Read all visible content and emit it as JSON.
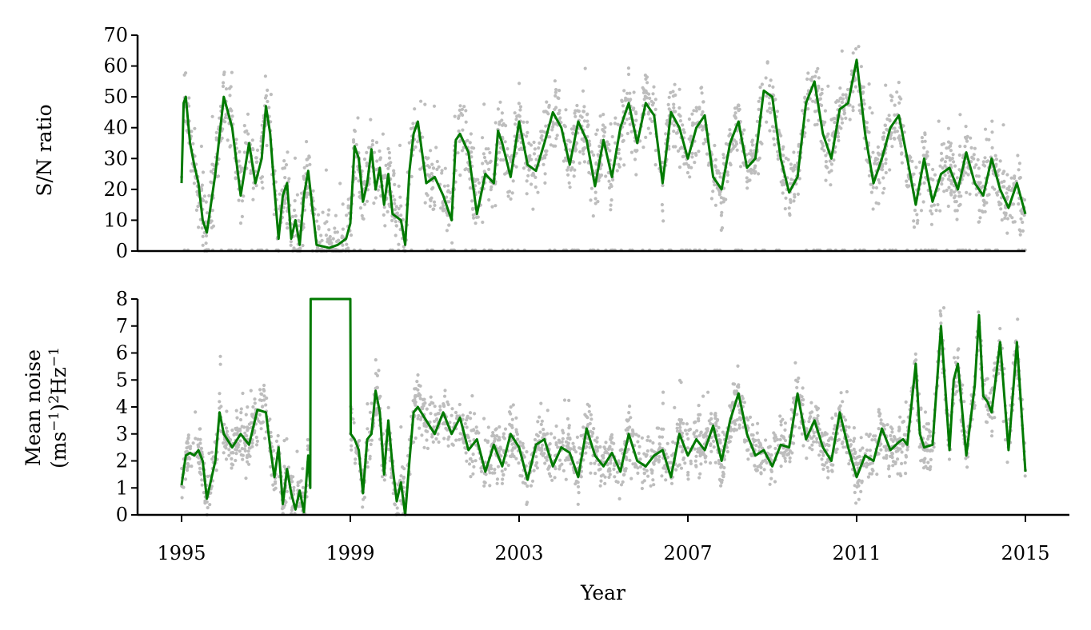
{
  "chart_data": [
    {
      "type": "line",
      "panel": "top",
      "ylabel": "S/N ratio",
      "xlabel": "",
      "xlim": [
        1995,
        2015
      ],
      "ylim": [
        0,
        70
      ],
      "yticks": [
        "0",
        "10",
        "20",
        "30",
        "40",
        "50",
        "60",
        "70"
      ],
      "grid": false,
      "scatter_color": "#bdbdbd",
      "line_color": "#007a00",
      "scatter_note": "dense grey daily values scattered around the smoothed line, many points at 0",
      "smoothed": {
        "x": [
          1995.0,
          1995.05,
          1995.1,
          1995.2,
          1995.3,
          1995.4,
          1995.5,
          1995.6,
          1995.8,
          1996.0,
          1996.2,
          1996.4,
          1996.6,
          1996.75,
          1996.9,
          1997.0,
          1997.1,
          1997.2,
          1997.3,
          1997.4,
          1997.5,
          1997.6,
          1997.7,
          1997.8,
          1997.9,
          1998.0,
          1998.2,
          1998.5,
          1998.7,
          1998.9,
          1999.0,
          1999.1,
          1999.2,
          1999.3,
          1999.4,
          1999.5,
          1999.6,
          1999.7,
          1999.8,
          1999.9,
          2000.0,
          2000.2,
          2000.3,
          2000.4,
          2000.5,
          2000.6,
          2000.8,
          2001.0,
          2001.2,
          2001.4,
          2001.5,
          2001.6,
          2001.8,
          2002.0,
          2002.2,
          2002.4,
          2002.5,
          2002.6,
          2002.8,
          2003.0,
          2003.2,
          2003.4,
          2003.6,
          2003.8,
          2004.0,
          2004.2,
          2004.4,
          2004.6,
          2004.8,
          2005.0,
          2005.2,
          2005.4,
          2005.6,
          2005.8,
          2006.0,
          2006.2,
          2006.4,
          2006.6,
          2006.8,
          2007.0,
          2007.2,
          2007.4,
          2007.6,
          2007.8,
          2008.0,
          2008.2,
          2008.4,
          2008.6,
          2008.8,
          2009.0,
          2009.2,
          2009.4,
          2009.6,
          2009.8,
          2010.0,
          2010.2,
          2010.4,
          2010.6,
          2010.8,
          2011.0,
          2011.2,
          2011.4,
          2011.6,
          2011.8,
          2012.0,
          2012.2,
          2012.4,
          2012.6,
          2012.8,
          2013.0,
          2013.2,
          2013.4,
          2013.6,
          2013.8,
          2014.0,
          2014.2,
          2014.4,
          2014.6,
          2014.8,
          2015.0
        ],
        "y": [
          22,
          48,
          50,
          35,
          28,
          22,
          10,
          6,
          25,
          50,
          40,
          18,
          35,
          22,
          30,
          47,
          38,
          20,
          4,
          18,
          22,
          4,
          10,
          2,
          18,
          26,
          2,
          1,
          2,
          4,
          9,
          34,
          30,
          16,
          22,
          33,
          20,
          27,
          15,
          25,
          12,
          10,
          2,
          26,
          38,
          42,
          22,
          24,
          18,
          10,
          36,
          38,
          32,
          12,
          25,
          22,
          39,
          35,
          24,
          42,
          28,
          26,
          35,
          45,
          40,
          28,
          42,
          36,
          21,
          36,
          24,
          40,
          48,
          35,
          48,
          44,
          22,
          45,
          40,
          30,
          40,
          44,
          24,
          20,
          35,
          42,
          27,
          30,
          52,
          50,
          30,
          19,
          24,
          48,
          55,
          38,
          30,
          46,
          48,
          62,
          38,
          22,
          30,
          40,
          44,
          30,
          15,
          30,
          16,
          25,
          27,
          20,
          32,
          22,
          18,
          30,
          20,
          14,
          22,
          12
        ]
      }
    },
    {
      "type": "line",
      "panel": "bottom",
      "ylabel_line1": "Mean noise",
      "ylabel_line2_parts": [
        "(ms",
        "−1",
        ")",
        "2",
        "Hz",
        "−1"
      ],
      "xlabel": "Year",
      "xlim": [
        1995,
        2015
      ],
      "ylim": [
        0,
        8
      ],
      "yticks": [
        "0",
        "1",
        "2",
        "3",
        "4",
        "5",
        "6",
        "7",
        "8"
      ],
      "xticks": [
        1995,
        1999,
        2003,
        2007,
        2011,
        2015
      ],
      "xtick_labels": [
        "1995",
        "1999",
        "2003",
        "2007",
        "2011",
        "2015"
      ],
      "grid": false,
      "scatter_color": "#bdbdbd",
      "line_color": "#007a00",
      "smoothed": {
        "x": [
          1995.0,
          1995.1,
          1995.2,
          1995.3,
          1995.4,
          1995.5,
          1995.6,
          1995.8,
          1995.9,
          1996.0,
          1996.2,
          1996.4,
          1996.6,
          1996.8,
          1997.0,
          1997.1,
          1997.2,
          1997.3,
          1997.4,
          1997.5,
          1997.6,
          1997.7,
          1997.8,
          1997.9,
          1998.0,
          1998.05,
          1998.06,
          1999.0,
          1999.01,
          1999.1,
          1999.2,
          1999.3,
          1999.4,
          1999.5,
          1999.6,
          1999.7,
          1999.8,
          1999.9,
          2000.0,
          2000.1,
          2000.2,
          2000.3,
          2000.4,
          2000.5,
          2000.6,
          2000.8,
          2001.0,
          2001.2,
          2001.4,
          2001.6,
          2001.8,
          2002.0,
          2002.2,
          2002.4,
          2002.6,
          2002.8,
          2003.0,
          2003.2,
          2003.4,
          2003.6,
          2003.8,
          2004.0,
          2004.2,
          2004.4,
          2004.6,
          2004.8,
          2005.0,
          2005.2,
          2005.4,
          2005.6,
          2005.8,
          2006.0,
          2006.2,
          2006.4,
          2006.6,
          2006.8,
          2007.0,
          2007.2,
          2007.4,
          2007.6,
          2007.8,
          2008.0,
          2008.2,
          2008.4,
          2008.6,
          2008.8,
          2009.0,
          2009.2,
          2009.4,
          2009.6,
          2009.8,
          2010.0,
          2010.2,
          2010.4,
          2010.6,
          2010.8,
          2011.0,
          2011.2,
          2011.4,
          2011.6,
          2011.8,
          2012.0,
          2012.1,
          2012.2,
          2012.4,
          2012.5,
          2012.6,
          2012.8,
          2013.0,
          2013.2,
          2013.3,
          2013.4,
          2013.6,
          2013.8,
          2013.9,
          2014.0,
          2014.1,
          2014.2,
          2014.4,
          2014.6,
          2014.8,
          2015.0
        ],
        "y": [
          1.1,
          2.2,
          2.3,
          2.2,
          2.4,
          2.0,
          0.6,
          2.0,
          3.8,
          3.0,
          2.5,
          3.0,
          2.6,
          3.9,
          3.8,
          2.5,
          1.4,
          2.5,
          0.4,
          1.7,
          0.8,
          0.2,
          0.9,
          0.1,
          2.2,
          1.0,
          8.0,
          8.0,
          3.0,
          2.8,
          2.4,
          0.8,
          2.8,
          3.0,
          4.6,
          3.8,
          1.5,
          3.5,
          1.8,
          0.5,
          1.2,
          0.0,
          2.0,
          3.8,
          4.0,
          3.5,
          3.0,
          3.8,
          3.0,
          3.6,
          2.4,
          2.8,
          1.6,
          2.6,
          1.8,
          3.0,
          2.5,
          1.3,
          2.6,
          2.8,
          1.8,
          2.5,
          2.3,
          1.4,
          3.2,
          2.2,
          1.8,
          2.3,
          1.6,
          3.0,
          2.0,
          1.8,
          2.2,
          2.4,
          1.4,
          3.0,
          2.2,
          2.8,
          2.4,
          3.3,
          2.0,
          3.5,
          4.5,
          3.0,
          2.2,
          2.4,
          1.8,
          2.6,
          2.5,
          4.5,
          2.8,
          3.5,
          2.5,
          2.0,
          3.8,
          2.5,
          1.4,
          2.2,
          2.0,
          3.2,
          2.4,
          2.7,
          2.8,
          2.6,
          5.6,
          3.0,
          2.5,
          2.6,
          7.0,
          2.4,
          5.0,
          5.6,
          2.2,
          4.8,
          7.4,
          4.4,
          4.2,
          3.8,
          6.4,
          2.4,
          6.4,
          1.6
        ]
      }
    }
  ]
}
